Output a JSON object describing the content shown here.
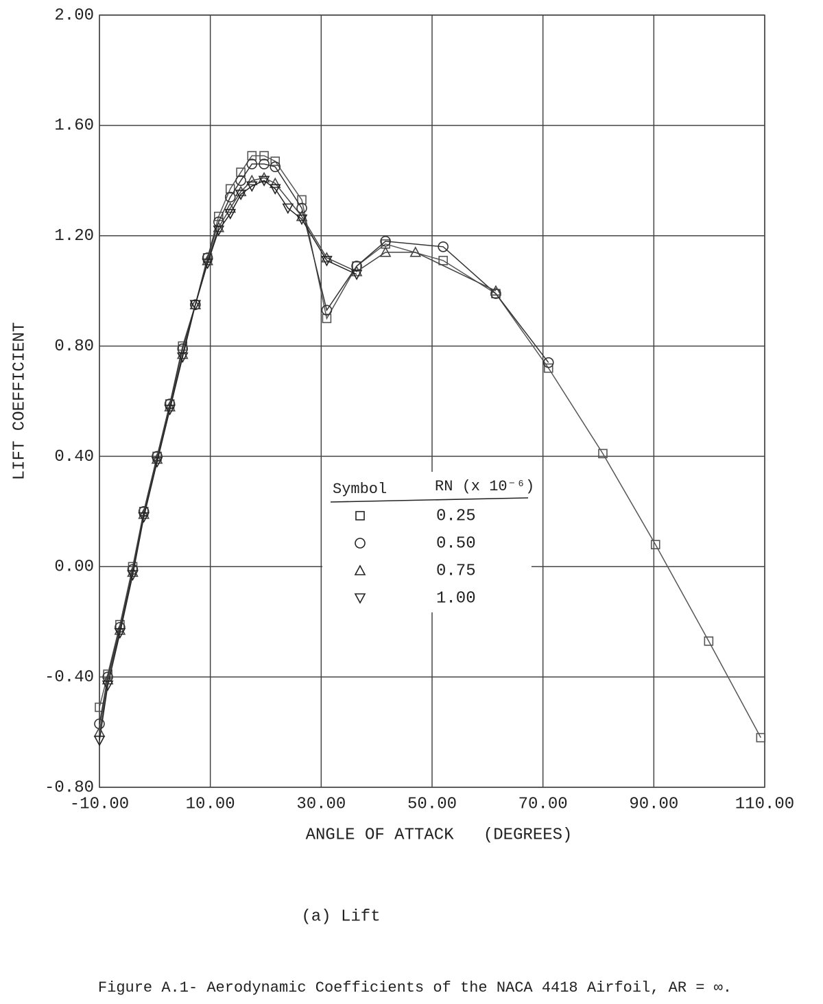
{
  "chart_data": {
    "type": "line",
    "title": "(a) Lift",
    "caption": "Figure A.1- Aerodynamic Coefficients of the NACA 4418 Airfoil, AR = ∞.",
    "xlabel": "ANGLE OF ATTACK   (DEGREES)",
    "ylabel": "LIFT COEFFICIENT",
    "legend_title": [
      "Symbol",
      "RN (x 10⁻⁶)"
    ],
    "xlim": [
      -10,
      110
    ],
    "ylim": [
      -0.8,
      2.0
    ],
    "xticks": [
      {
        "value": -10,
        "label": "-10.00"
      },
      {
        "value": 10,
        "label": "10.00"
      },
      {
        "value": 30,
        "label": "30.00"
      },
      {
        "value": 50,
        "label": "50.00"
      },
      {
        "value": 70,
        "label": "70.00"
      },
      {
        "value": 90,
        "label": "90.00"
      },
      {
        "value": 110,
        "label": "110.00"
      }
    ],
    "yticks": [
      {
        "value": -0.8,
        "label": "-0.80"
      },
      {
        "value": -0.4,
        "label": "-0.40"
      },
      {
        "value": 0,
        "label": "0.00"
      },
      {
        "value": 0.4,
        "label": "0.40"
      },
      {
        "value": 0.8,
        "label": "0.80"
      },
      {
        "value": 1.2,
        "label": "1.20"
      },
      {
        "value": 1.6,
        "label": "1.60"
      },
      {
        "value": 2.0,
        "label": "2.00"
      }
    ],
    "grid": true,
    "series": [
      {
        "name": "0.25",
        "color": "#555555",
        "marker": "square",
        "x": [
          -10,
          -8.5,
          -6.3,
          -4,
          -2,
          0.4,
          2.7,
          5,
          7.3,
          9.5,
          11.5,
          13.6,
          15.5,
          17.5,
          19.7,
          21.7,
          26.5,
          31,
          36.4,
          41.6,
          52,
          61.5,
          71,
          80.8,
          90.3,
          99.9,
          109.3
        ],
        "values": [
          -0.51,
          -0.39,
          -0.21,
          0.0,
          0.2,
          0.4,
          0.59,
          0.8,
          0.95,
          1.12,
          1.27,
          1.37,
          1.43,
          1.49,
          1.49,
          1.47,
          1.33,
          0.9,
          1.09,
          1.17,
          1.11,
          0.99,
          0.72,
          0.41,
          0.08,
          -0.27,
          -0.62
        ]
      },
      {
        "name": "0.50",
        "color": "#333333",
        "marker": "circle",
        "x": [
          -10,
          -8.5,
          -6.3,
          -4,
          -2,
          0.4,
          2.7,
          5,
          7.3,
          9.5,
          11.5,
          13.6,
          15.5,
          17.5,
          19.7,
          21.7,
          26.5,
          31,
          36.4,
          41.6,
          52,
          61.5,
          71
        ],
        "values": [
          -0.57,
          -0.4,
          -0.22,
          -0.01,
          0.2,
          0.4,
          0.59,
          0.79,
          0.95,
          1.12,
          1.25,
          1.34,
          1.4,
          1.46,
          1.46,
          1.45,
          1.3,
          0.93,
          1.09,
          1.18,
          1.16,
          0.99,
          0.74
        ]
      },
      {
        "name": "0.75",
        "color": "#444444",
        "marker": "triangle-up",
        "x": [
          -10,
          -8.5,
          -6.3,
          -4,
          -2,
          0.4,
          2.7,
          5,
          7.3,
          9.5,
          11.5,
          13.6,
          15.5,
          17.5,
          19.7,
          21.7,
          26.5,
          31,
          36.4,
          41.6,
          47,
          61.5
        ],
        "values": [
          -0.6,
          -0.41,
          -0.23,
          -0.02,
          0.19,
          0.39,
          0.58,
          0.77,
          0.95,
          1.11,
          1.23,
          1.3,
          1.36,
          1.4,
          1.41,
          1.39,
          1.27,
          1.12,
          1.07,
          1.14,
          1.14,
          1.0
        ]
      },
      {
        "name": "1.00",
        "color": "#222222",
        "marker": "triangle-down",
        "x": [
          -10,
          -8.5,
          -6.3,
          -4,
          -2,
          0.4,
          2.7,
          5,
          7.3,
          9.5,
          11.5,
          13.6,
          15.5,
          17.5,
          19.7,
          21.7,
          24,
          26.5,
          31,
          36.4
        ],
        "values": [
          -0.63,
          -0.43,
          -0.24,
          -0.03,
          0.18,
          0.38,
          0.57,
          0.76,
          0.95,
          1.1,
          1.22,
          1.28,
          1.35,
          1.38,
          1.4,
          1.37,
          1.3,
          1.26,
          1.11,
          1.06
        ]
      }
    ]
  }
}
